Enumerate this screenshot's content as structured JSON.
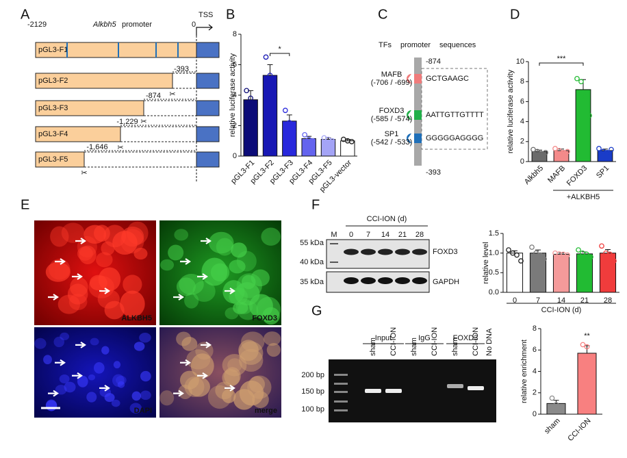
{
  "letters": [
    "A",
    "B",
    "C",
    "D",
    "E",
    "F",
    "G"
  ],
  "panel_a": {
    "start": "-2129",
    "gene": "Alkbh5",
    "promoter": "promoter",
    "end": "0",
    "tss": "TSS",
    "constructs": [
      {
        "name": "pGL3-F1"
      },
      {
        "name": "pGL3-F2",
        "cut": "-393"
      },
      {
        "name": "pGL3-F3",
        "cut": "-874"
      },
      {
        "name": "pGL3-F4",
        "cut": "-1,229"
      },
      {
        "name": "pGL3-F5",
        "cut": "-1,646"
      }
    ]
  },
  "panel_c": {
    "headers": [
      "TFs",
      "promoter",
      "sequences"
    ],
    "top": "-874",
    "bottom": "-393",
    "factors": [
      {
        "name": "MAFB",
        "range": "(-706 / -699)",
        "sequence": "GCTGAAGC",
        "color": "#ef7b7b"
      },
      {
        "name": "FOXD3",
        "range": "(-585 / -574)",
        "sequence": "AATTGTTGTTTT",
        "color": "#22b04a"
      },
      {
        "name": "SP1",
        "range": "(-542 / -533)",
        "sequence": "GGGGGAGGGG",
        "color": "#1f6fb8"
      }
    ]
  },
  "chart_data": [
    {
      "type": "bar",
      "ylabel": "relative luciferase activity",
      "annotation": "*",
      "categories": [
        "pGL3-F1",
        "pGL3-F2",
        "pGL3-F3",
        "pGL3-F4",
        "pGL3-F5",
        "pGL3-vector"
      ],
      "values": [
        3.7,
        5.3,
        2.3,
        1.15,
        1.1,
        1.0
      ],
      "errors": [
        0.6,
        0.7,
        0.4,
        0.15,
        0.1,
        0.1
      ],
      "points": [
        [
          4.3,
          3.8,
          2.9
        ],
        [
          6.5,
          5.3,
          4.1
        ],
        [
          3.0,
          2.2,
          1.6
        ],
        [
          1.4,
          1.1,
          1.0
        ],
        [
          1.2,
          1.1,
          1.0
        ],
        [
          1.1,
          1.0,
          0.95
        ]
      ],
      "colors": [
        "#0c0c78",
        "#1818b4",
        "#2828dc",
        "#6464ee",
        "#a4a4f6",
        "#ffffff"
      ],
      "ylim": [
        0,
        8
      ],
      "yticks": [
        0,
        2,
        4,
        6,
        8
      ]
    },
    {
      "type": "bar",
      "ylabel": "relative luciferase activity",
      "annotation": "***",
      "group_label": "+ALKBH5",
      "categories": [
        "Alkbh5",
        "MAFB",
        "FOXD3",
        "SP1"
      ],
      "values": [
        1.0,
        1.1,
        7.2,
        1.1
      ],
      "errors": [
        0.15,
        0.15,
        1.0,
        0.15
      ],
      "points": [
        [
          1.2,
          1.0,
          0.8,
          0.9
        ],
        [
          1.3,
          1.1,
          0.9,
          1.0
        ],
        [
          8.3,
          8.0,
          6.4,
          4.6
        ],
        [
          1.3,
          1.0,
          0.9,
          1.2
        ]
      ],
      "colors": [
        "#6b6b6b",
        "#f48a8a",
        "#22bb33",
        "#1a3cc8"
      ],
      "ylim": [
        0,
        10
      ],
      "yticks": [
        0,
        2,
        4,
        6,
        8,
        10
      ]
    },
    {
      "type": "bar",
      "ylabel": "relative level",
      "xlabel": "CCI-ION (d)",
      "categories": [
        "0",
        "7",
        "14",
        "21",
        "28"
      ],
      "values": [
        1.0,
        1.0,
        0.97,
        0.98,
        1.0
      ],
      "errors": [
        0.06,
        0.08,
        0.03,
        0.05,
        0.09
      ],
      "points": [
        [
          1.08,
          1.0,
          0.95,
          0.8
        ],
        [
          1.15,
          1.0,
          0.95,
          0.85
        ],
        [
          1.0,
          0.98,
          0.97,
          0.95
        ],
        [
          1.08,
          1.0,
          0.97,
          0.9
        ],
        [
          1.18,
          1.0,
          0.97,
          0.8
        ]
      ],
      "colors": [
        "#ffffff",
        "#7a7a7a",
        "#f49a9a",
        "#22bb33",
        "#f03c3c"
      ],
      "ylim": [
        0,
        1.5
      ],
      "yticks": [
        {
          "value": 0,
          "label": "0.0"
        },
        {
          "value": 0.5,
          "label": "0.5"
        },
        {
          "value": 1,
          "label": "1.0"
        },
        {
          "value": 1.5,
          "label": "1.5"
        }
      ]
    },
    {
      "type": "bar",
      "ylabel": "relative enrichment",
      "annotation": "**",
      "categories": [
        "sham",
        "CCI-ION"
      ],
      "values": [
        1.0,
        5.7
      ],
      "errors": [
        0.3,
        0.7
      ],
      "points": [
        [
          1.5,
          0.9,
          0.5
        ],
        [
          6.5,
          6.3,
          4.6
        ]
      ],
      "colors": [
        "#8a8a8a",
        "#f88080"
      ],
      "ylim": [
        0,
        8
      ],
      "yticks": [
        0,
        2,
        4,
        6,
        8
      ]
    }
  ],
  "panel_e": {
    "labels": [
      "ALKBH5",
      "FOXD3",
      "DAPI",
      "merge"
    ]
  },
  "panel_f": {
    "marker": "M",
    "treatment": "CCI-ION (d)",
    "lanes": [
      "0",
      "7",
      "14",
      "21",
      "28"
    ],
    "sizes": [
      "55 kDa",
      "40 kDa",
      "35 kDa"
    ],
    "proteins": [
      "FOXD3",
      "GAPDH"
    ]
  },
  "panel_g": {
    "groups": [
      "Input",
      "IgG",
      "FOXD3"
    ],
    "lanes": [
      "sham",
      "CCI-ION",
      "sham",
      "CCI-ION",
      "sham",
      "CCI-ION",
      "No DNA"
    ],
    "sizes": [
      "200 bp",
      "150 bp",
      "100 bp"
    ]
  }
}
